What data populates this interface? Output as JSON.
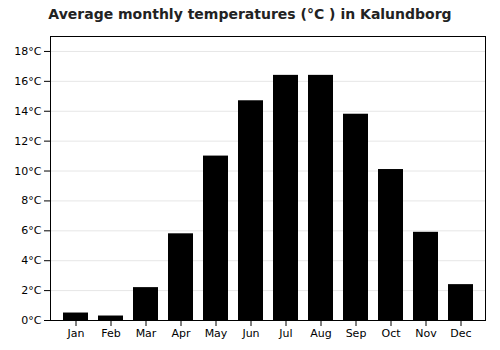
{
  "chart_data": {
    "type": "bar",
    "title": "Average monthly temperatures (°C ) in Kalundborg",
    "categories": [
      "Jan",
      "Feb",
      "Mar",
      "Apr",
      "May",
      "Jun",
      "Jul",
      "Aug",
      "Sep",
      "Oct",
      "Nov",
      "Dec"
    ],
    "values": [
      0.5,
      0.3,
      2.2,
      5.8,
      11.0,
      14.7,
      16.4,
      16.4,
      13.8,
      10.1,
      5.9,
      2.4
    ],
    "ylim": [
      0,
      19
    ],
    "yticks": [
      {
        "value": 0,
        "label": "0°C"
      },
      {
        "value": 2,
        "label": "2°C"
      },
      {
        "value": 4,
        "label": "4°C"
      },
      {
        "value": 6,
        "label": "6°C"
      },
      {
        "value": 8,
        "label": "8°C"
      },
      {
        "value": 10,
        "label": "10°C"
      },
      {
        "value": 12,
        "label": "12°C"
      },
      {
        "value": 14,
        "label": "14°C"
      },
      {
        "value": 16,
        "label": "16°C"
      },
      {
        "value": 18,
        "label": "18°C"
      }
    ],
    "grid": true
  }
}
